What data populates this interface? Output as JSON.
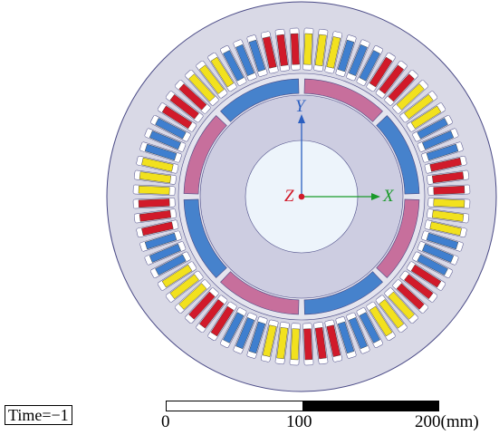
{
  "axes": {
    "x_label": "X",
    "y_label": "Y",
    "z_label": "Z"
  },
  "time": {
    "label": "Time=−1"
  },
  "scale_bar": {
    "ticks": [
      "0",
      "100",
      "200(mm)"
    ]
  },
  "colors": {
    "background": "#ffffff",
    "housing": "#d9d9e6",
    "outline": "#4a4a86",
    "stator_core": "#e4e4ee",
    "slot": "#ffffff",
    "phase_red": "#d11a2a",
    "phase_blue": "#3f7fcf",
    "phase_yellow": "#f2e11e",
    "rotor_core": "#cdcde1",
    "magnet_blue": "#4682cc",
    "magnet_pink": "#c76f9c",
    "shaft": "#edf4fb",
    "x_axis": "#1a9a2a",
    "y_axis": "#2b5fc0",
    "z_axis": "#d11a2a"
  },
  "stator": {
    "slot_count": 72,
    "phase_sequence": [
      "phase_yellow",
      "phase_yellow",
      "phase_yellow",
      "phase_blue",
      "phase_blue",
      "phase_blue",
      "phase_red",
      "phase_red",
      "phase_red"
    ]
  },
  "rotor": {
    "pole_count": 8,
    "pole_colors": [
      "magnet_pink",
      "magnet_blue"
    ]
  }
}
